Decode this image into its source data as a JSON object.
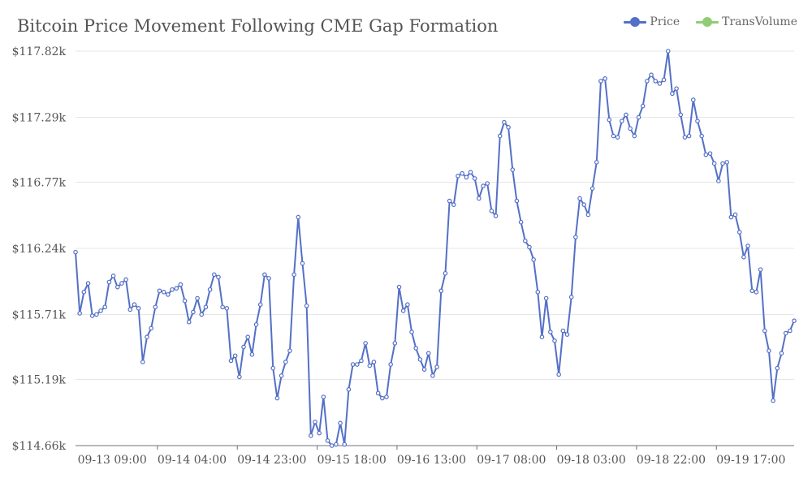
{
  "colors": {
    "price": "#5470c6",
    "transvolume": "#91cc75",
    "grid": "#e6e6e6",
    "axis": "#6e7079",
    "text": "#555555"
  },
  "chart_data": {
    "type": "line",
    "title": "Bitcoin Price Movement Following CME Gap Formation",
    "legend": {
      "placement": "top-right",
      "entries": [
        "Price",
        "TransVolume"
      ]
    },
    "grid": true,
    "ylim": [
      114660,
      117820
    ],
    "y_ticks": [
      "$114.66k",
      "$115.19k",
      "$115.71k",
      "$116.24k",
      "$116.77k",
      "$117.29k",
      "$117.82k"
    ],
    "y_tick_values": [
      114660,
      115190,
      115710,
      116240,
      116770,
      117290,
      117820
    ],
    "x_tick_labels": [
      "09-13 09:00",
      "09-14 04:00",
      "09-14 23:00",
      "09-15 18:00",
      "09-16 13:00",
      "09-17 08:00",
      "09-18 03:00",
      "09-18 22:00",
      "09-19 17:00"
    ],
    "x_tick_label_index": [
      1,
      20,
      39,
      58,
      77,
      96,
      115,
      134,
      153
    ],
    "x_tick_boundary_index": [
      19,
      38,
      57,
      76,
      95,
      114,
      133,
      152
    ],
    "series": [
      {
        "name": "Price",
        "values": [
          116210,
          115720,
          115890,
          115960,
          115700,
          115710,
          115740,
          115770,
          115970,
          116020,
          115930,
          115960,
          115990,
          115750,
          115790,
          115760,
          115330,
          115530,
          115600,
          115770,
          115900,
          115890,
          115870,
          115910,
          115920,
          115950,
          115820,
          115650,
          115730,
          115840,
          115710,
          115770,
          115910,
          116030,
          116010,
          115770,
          115760,
          115340,
          115380,
          115210,
          115450,
          115530,
          115390,
          115630,
          115790,
          116030,
          116000,
          115280,
          115040,
          115220,
          115330,
          115420,
          116030,
          116490,
          116120,
          115780,
          114740,
          114850,
          114760,
          115050,
          114700,
          114660,
          114670,
          114840,
          114670,
          115110,
          115310,
          115310,
          115340,
          115480,
          115300,
          115330,
          115080,
          115040,
          115050,
          115310,
          115480,
          115930,
          115740,
          115790,
          115570,
          115440,
          115350,
          115270,
          115400,
          115220,
          115290,
          115900,
          116040,
          116620,
          116590,
          116820,
          116840,
          116810,
          116850,
          116800,
          116640,
          116740,
          116760,
          116540,
          116500,
          117140,
          117250,
          117210,
          116870,
          116620,
          116450,
          116300,
          116250,
          116150,
          115890,
          115530,
          115840,
          115570,
          115500,
          115230,
          115580,
          115550,
          115850,
          116330,
          116640,
          116590,
          116510,
          116720,
          116930,
          117580,
          117600,
          117270,
          117140,
          117130,
          117260,
          117310,
          117200,
          117140,
          117290,
          117380,
          117580,
          117630,
          117580,
          117560,
          117590,
          117820,
          117480,
          117520,
          117310,
          117130,
          117140,
          117430,
          117260,
          117140,
          116990,
          117000,
          116920,
          116780,
          116920,
          116930,
          116490,
          116510,
          116370,
          116170,
          116260,
          115900,
          115890,
          116070,
          115580,
          115420,
          115020,
          115280,
          115400,
          115560,
          115580,
          115660
        ]
      }
    ]
  }
}
